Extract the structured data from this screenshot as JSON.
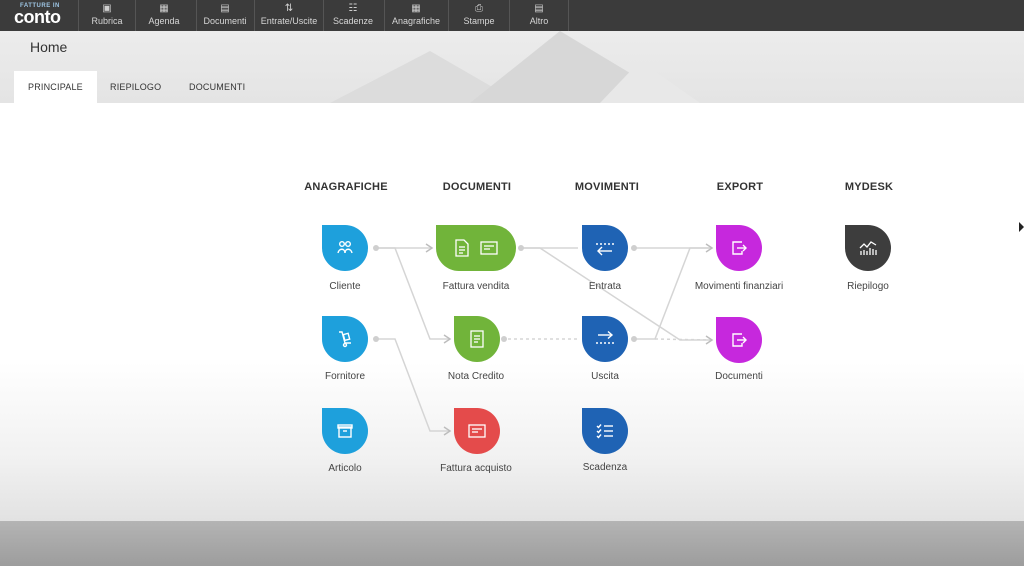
{
  "app": {
    "logo_small": "FATTURE IN",
    "logo_big": "conto"
  },
  "topnav": [
    {
      "label": "Rubrica",
      "icon": "address-book-icon",
      "glyph": "▣"
    },
    {
      "label": "Agenda",
      "icon": "calendar-icon",
      "glyph": "▦"
    },
    {
      "label": "Documenti",
      "icon": "document-icon",
      "glyph": "▤"
    },
    {
      "label": "Entrate/Uscite",
      "icon": "updown-arrows-icon",
      "glyph": "⇅"
    },
    {
      "label": "Scadenze",
      "icon": "checklist-icon",
      "glyph": "☷"
    },
    {
      "label": "Anagrafiche",
      "icon": "grid-icon",
      "glyph": "▦"
    },
    {
      "label": "Stampe",
      "icon": "printer-icon",
      "glyph": "⎙"
    },
    {
      "label": "Altro",
      "icon": "document-gear-icon",
      "glyph": "▤"
    }
  ],
  "page": {
    "title": "Home"
  },
  "tabs": [
    {
      "label": "PRINCIPALE",
      "active": true
    },
    {
      "label": "RIEPILOGO",
      "active": false
    },
    {
      "label": "DOCUMENTI",
      "active": false
    }
  ],
  "columns": {
    "anagrafiche": "ANAGRAFICHE",
    "documenti": "DOCUMENTI",
    "movimenti": "MOVIMENTI",
    "export": "EXPORT",
    "mydesk": "MYDESK"
  },
  "nodes": {
    "cliente": "Cliente",
    "fornitore": "Fornitore",
    "articolo": "Articolo",
    "fattura_vendita": "Fattura vendita",
    "nota_credito": "Nota Credito",
    "fattura_acquisto": "Fattura acquisto",
    "entrata": "Entrata",
    "uscita": "Uscita",
    "scadenza": "Scadenza",
    "movimenti_finanziari": "Movimenti finanziari",
    "documenti_export": "Documenti",
    "riepilogo": "Riepilogo"
  },
  "colors": {
    "toolbar": "#3b3b3b",
    "anagrafiche": "#1ea0dc",
    "documenti_green": "#71b43a",
    "documenti_red": "#e44b4b",
    "movimenti": "#1f63b4",
    "export": "#c628dd",
    "mydesk": "#3d3d3d"
  }
}
